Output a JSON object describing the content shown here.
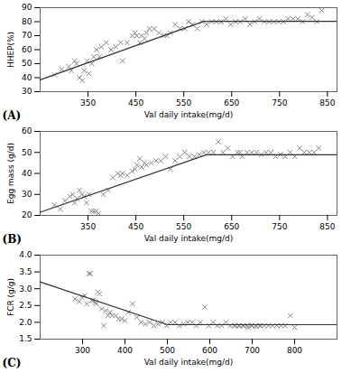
{
  "chart_data": [
    {
      "type": "scatter",
      "annotations": [
        "(A)"
      ],
      "xlabel": "Val daily intake(mg/d)",
      "ylabel": "HHEP(%)",
      "xlim": [
        250,
        870
      ],
      "ylim": [
        30,
        90
      ],
      "xticks": [
        350,
        450,
        550,
        650,
        750,
        850
      ],
      "yticks": [
        30,
        40,
        50,
        60,
        70,
        80,
        90
      ],
      "series": [
        {
          "type": "scatter",
          "marker": "x",
          "color": "#888888",
          "x": [
            280,
            295,
            310,
            315,
            322,
            326,
            332,
            338,
            342,
            348,
            352,
            358,
            362,
            368,
            374,
            378,
            388,
            398,
            408,
            418,
            422,
            432,
            442,
            448,
            452,
            458,
            462,
            468,
            472,
            478,
            488,
            498,
            508,
            515,
            522,
            532,
            542,
            552,
            560,
            568,
            578,
            588,
            598,
            608,
            618,
            628,
            638,
            648,
            658,
            668,
            678,
            688,
            698,
            708,
            718,
            728,
            738,
            748,
            758,
            768,
            778,
            788,
            798,
            808,
            818,
            828,
            838
          ],
          "values": [
            42,
            46,
            48,
            45,
            52,
            50,
            40,
            38,
            45,
            52,
            43,
            50,
            55,
            60,
            55,
            62,
            65,
            60,
            62,
            65,
            52,
            65,
            70,
            72,
            70,
            65,
            70,
            68,
            72,
            75,
            75,
            72,
            70,
            70,
            72,
            78,
            75,
            75,
            80,
            78,
            75,
            80,
            78,
            80,
            80,
            80,
            82,
            78,
            80,
            80,
            82,
            78,
            80,
            82,
            80,
            80,
            80,
            80,
            80,
            82,
            82,
            82,
            80,
            85,
            83,
            80,
            88
          ]
        },
        {
          "type": "line",
          "color": "#333333",
          "x": [
            250,
            591.9,
            870
          ],
          "values": [
            38.45982,
            80.24,
            80.24
          ]
        }
      ]
    },
    {
      "type": "scatter",
      "annotations": [
        "(B)"
      ],
      "xlabel": "Val daily intake(mg/d)",
      "ylabel": "Egg mass (g/d)",
      "xlim": [
        250,
        870
      ],
      "ylim": [
        20,
        60
      ],
      "xticks": [
        350,
        450,
        550,
        650,
        750,
        850
      ],
      "yticks": [
        20,
        30,
        40,
        50,
        60
      ],
      "series": [
        {
          "type": "scatter",
          "marker": "x",
          "color": "#888888",
          "x": [
            280,
            292,
            302,
            312,
            318,
            322,
            327,
            332,
            337,
            342,
            347,
            352,
            357,
            362,
            367,
            372,
            382,
            392,
            402,
            412,
            418,
            422,
            432,
            442,
            448,
            452,
            458,
            462,
            468,
            472,
            482,
            492,
            502,
            512,
            522,
            532,
            542,
            552,
            562,
            572,
            582,
            592,
            602,
            612,
            622,
            632,
            642,
            652,
            662,
            668,
            672,
            682,
            692,
            702,
            712,
            722,
            732,
            742,
            752,
            762,
            772,
            782,
            792,
            802,
            812,
            822,
            832
          ],
          "values": [
            25,
            23,
            27,
            29,
            30,
            26,
            28,
            32,
            30,
            29,
            26,
            30,
            22,
            22,
            22,
            21,
            30,
            32,
            38,
            40,
            39,
            40,
            39,
            41,
            42,
            44,
            47,
            43,
            45,
            44,
            45,
            46,
            46,
            48,
            42,
            46,
            48,
            50,
            48,
            48,
            49,
            50,
            50,
            50,
            55,
            50,
            52,
            48,
            50,
            50,
            48,
            50,
            50,
            50,
            49,
            50,
            50,
            48,
            49,
            48,
            50,
            48,
            52,
            50,
            50,
            50,
            52
          ]
        },
        {
          "type": "line",
          "color": "#333333",
          "x": [
            250,
            597.3,
            870
          ],
          "values": [
            21.515395,
            48.9,
            48.9
          ]
        }
      ]
    },
    {
      "type": "scatter",
      "annotations": [
        "(C)"
      ],
      "xlabel": "Val daily intake(mg/d)",
      "ylabel": "FCR (g/g)",
      "xlim": [
        200,
        900
      ],
      "ylim": [
        1.5,
        4.0
      ],
      "xticks": [
        300,
        400,
        500,
        600,
        700,
        800
      ],
      "yticks": [
        1.5,
        {
          "value": 2.0,
          "label": "2.0"
        },
        2.5,
        {
          "value": 3.0,
          "label": "3.0"
        },
        3.5,
        {
          "value": 4.0,
          "label": "4.0"
        }
      ],
      "series": [
        {
          "type": "scatter",
          "marker": "x",
          "color": "#888888",
          "x": [
            282,
            292,
            298,
            305,
            310,
            315,
            318,
            322,
            325,
            330,
            332,
            336,
            340,
            345,
            350,
            355,
            360,
            365,
            370,
            378,
            385,
            392,
            400,
            408,
            418,
            428,
            438,
            448,
            458,
            468,
            478,
            488,
            498,
            508,
            518,
            528,
            538,
            548,
            558,
            568,
            578,
            588,
            598,
            608,
            618,
            628,
            638,
            648,
            658,
            668,
            678,
            688,
            698,
            708,
            718,
            728,
            738,
            748,
            758,
            768,
            778,
            790,
            800,
            660,
            670,
            680,
            690,
            700,
            710,
            720
          ],
          "values": [
            2.7,
            2.62,
            2.75,
            2.8,
            2.55,
            3.45,
            3.45,
            2.65,
            2.65,
            2.6,
            2.55,
            2.9,
            2.85,
            2.4,
            1.9,
            2.35,
            2.2,
            2.3,
            2.2,
            2.2,
            2.1,
            2.1,
            2.05,
            2.3,
            2.55,
            2.15,
            2.0,
            1.95,
            2.0,
            1.9,
            1.95,
            2.0,
            1.9,
            2.0,
            2.0,
            1.9,
            1.95,
            2.0,
            2.0,
            1.9,
            2.0,
            2.45,
            1.9,
            2.0,
            1.9,
            1.9,
            2.0,
            1.9,
            1.9,
            1.9,
            1.9,
            1.9,
            1.9,
            1.9,
            1.9,
            1.9,
            1.9,
            1.9,
            1.9,
            1.9,
            1.9,
            2.2,
            1.85,
            1.9,
            1.9,
            1.9,
            1.85,
            1.9,
            1.88,
            1.9
          ]
        },
        {
          "type": "line",
          "color": "#333333",
          "x": [
            200,
            500.3,
            900
          ],
          "values": [
            3.2053741,
            1.93,
            1.93
          ]
        }
      ]
    }
  ]
}
